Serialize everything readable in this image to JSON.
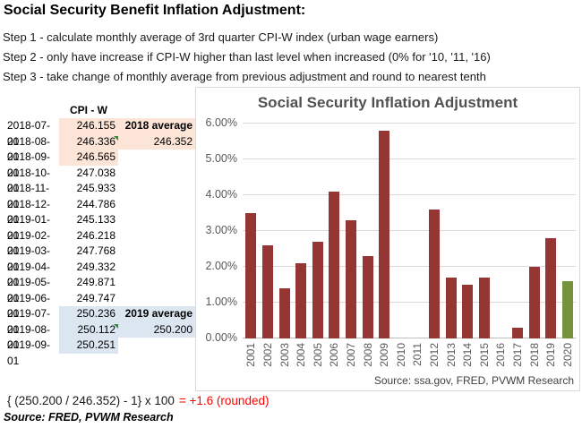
{
  "header": {
    "title": "Social Security Benefit Inflation Adjustment:",
    "steps": [
      "Step 1 - calculate monthly average of 3rd quarter CPI-W index (urban wage earners)",
      "Step 2 - only have increase if CPI-W higher than last level when increased (0% for '10, '11, '16)",
      "Step 3 - take change of monthly average from previous adjustment and round to nearest tenth"
    ]
  },
  "table": {
    "header": "CPI - W",
    "highlight_colors": {
      "peach": "#FCE4D6",
      "blue": "#DCE6F1"
    },
    "rows": [
      {
        "date": "2018-07-01",
        "value": "246.155",
        "highlight": "peach",
        "label": "2018 average"
      },
      {
        "date": "2018-08-01",
        "value": "246.336",
        "highlight": "peach",
        "avg": "246.352",
        "flag": true
      },
      {
        "date": "2018-09-01",
        "value": "246.565",
        "highlight": "peach"
      },
      {
        "date": "2018-10-01",
        "value": "247.038"
      },
      {
        "date": "2018-11-01",
        "value": "245.933"
      },
      {
        "date": "2018-12-01",
        "value": "244.786"
      },
      {
        "date": "2019-01-01",
        "value": "245.133"
      },
      {
        "date": "2019-02-01",
        "value": "246.218"
      },
      {
        "date": "2019-03-01",
        "value": "247.768"
      },
      {
        "date": "2019-04-01",
        "value": "249.332"
      },
      {
        "date": "2019-05-01",
        "value": "249.871"
      },
      {
        "date": "2019-06-01",
        "value": "249.747"
      },
      {
        "date": "2019-07-01",
        "value": "250.236",
        "highlight": "blue",
        "label": "2019 average"
      },
      {
        "date": "2019-08-01",
        "value": "250.112",
        "highlight": "blue",
        "avg": "250.200",
        "flag": true
      },
      {
        "date": "2019-09-01",
        "value": "250.251",
        "highlight": "blue"
      }
    ]
  },
  "chart_data": {
    "type": "bar",
    "title": "Social Security Inflation Adjustment",
    "categories": [
      "2001",
      "2002",
      "2003",
      "2004",
      "2005",
      "2006",
      "2007",
      "2008",
      "2009",
      "2010",
      "2011",
      "2012",
      "2013",
      "2014",
      "2015",
      "2016",
      "2017",
      "2018",
      "2019",
      "2020"
    ],
    "values": [
      3.5,
      2.6,
      1.4,
      2.1,
      2.7,
      4.1,
      3.3,
      2.3,
      5.8,
      0,
      0,
      3.6,
      1.7,
      1.5,
      1.7,
      0,
      0.3,
      2.0,
      2.8,
      1.6
    ],
    "xlabel": "",
    "ylabel": "",
    "ylim": [
      0,
      6
    ],
    "ytick_step": 1,
    "ytick_suffix": "%",
    "grid": true,
    "legend": "none",
    "bar_color": "#963634",
    "last_bar_color": "#76923C",
    "source": "Source:  ssa.gov, FRED, PVWM Research"
  },
  "formula": {
    "expression": "{ (250.200 / 246.352) - 1} x 100",
    "result": "= +1.6 (rounded)",
    "result_color": "#FF0000"
  },
  "footer_source": "Source:  FRED, PVWM Research"
}
